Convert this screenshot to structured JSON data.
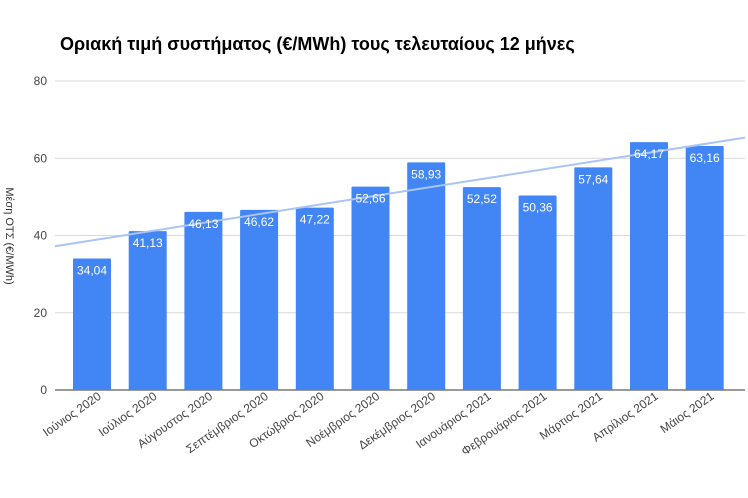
{
  "chart_data": {
    "type": "bar",
    "title": "Οριακή τιμή συστήματος (€/MWh) τους τελευταίους 12 μήνες",
    "ylabel": "Μέση ΟΤΣ (€/MWh)",
    "xlabel": "",
    "categories": [
      "Ιούνιος 2020",
      "Ιούλιος 2020",
      "Αύγουστος 2020",
      "Σεπτέμβριος 2020",
      "Οκτώβριος 2020",
      "Νοέμβριος 2020",
      "Δεκέμβριος 2020",
      "Ιανουάριος 2021",
      "Φεβρουάριος 2021",
      "Μάρτιος 2021",
      "Απρίλιος 2021",
      "Μάιος 2021"
    ],
    "values": [
      34.04,
      41.13,
      46.13,
      46.62,
      47.22,
      52.66,
      58.93,
      52.52,
      50.36,
      57.64,
      64.17,
      63.16
    ],
    "value_labels": [
      "34,04",
      "41,13",
      "46,13",
      "46,62",
      "47,22",
      "52,66",
      "58,93",
      "52,52",
      "50,36",
      "57,64",
      "64,17",
      "63,16"
    ],
    "ylim": [
      0,
      80
    ],
    "yticks": [
      0,
      20,
      40,
      60,
      80
    ],
    "ytick_labels": [
      "0",
      "20",
      "40",
      "60",
      "80"
    ],
    "grid": true,
    "trendline": true,
    "colors": {
      "bar": "#4285f4",
      "trendline": "#a9c4f5",
      "grid": "#d9d9d9"
    }
  }
}
